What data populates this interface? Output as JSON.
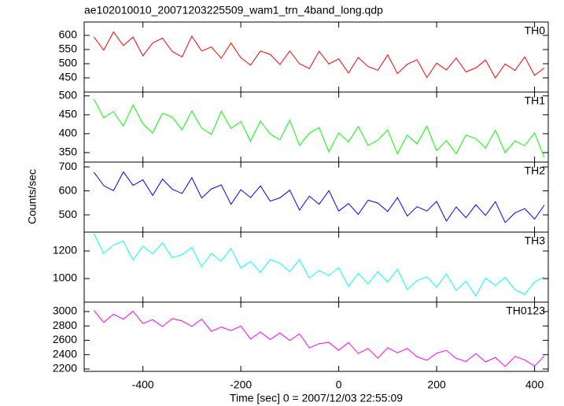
{
  "title": "ae102010010_20071203225509_wam1_trn_4band_long.qdp",
  "xlabel": "Time [sec] 0 = 2007/12/03 22:55:09",
  "ylabel": "Counts/sec",
  "chart_data": [
    {
      "type": "line",
      "label": "TH0",
      "color": "#ff0000",
      "x": [
        -500,
        -480,
        -460,
        -440,
        -420,
        -400,
        -380,
        -360,
        -340,
        -320,
        -300,
        -280,
        -260,
        -240,
        -220,
        -200,
        -180,
        -160,
        -140,
        -120,
        -100,
        -80,
        -60,
        -40,
        -20,
        0,
        20,
        40,
        60,
        80,
        100,
        120,
        140,
        160,
        180,
        200,
        220,
        240,
        260,
        280,
        300,
        320,
        340,
        360,
        380,
        400,
        420
      ],
      "values": [
        594,
        548,
        612,
        564,
        594,
        528,
        573,
        590,
        543,
        524,
        597,
        545,
        559,
        519,
        573,
        521,
        495,
        545,
        533,
        497,
        545,
        500,
        483,
        544,
        499,
        517,
        467,
        522,
        490,
        477,
        531,
        465,
        498,
        514,
        451,
        502,
        478,
        520,
        471,
        485,
        513,
        450,
        499,
        476,
        524,
        459,
        485
      ],
      "xlim": [
        -520,
        428
      ],
      "xticks": [
        -400,
        -200,
        0,
        200,
        400
      ],
      "ylim": [
        400,
        647
      ],
      "yticks": [
        450,
        500,
        550,
        600
      ]
    },
    {
      "type": "line",
      "label": "TH1",
      "color": "#00ff00",
      "x": [
        -500,
        -480,
        -460,
        -440,
        -420,
        -400,
        -380,
        -360,
        -340,
        -320,
        -300,
        -280,
        -260,
        -240,
        -220,
        -200,
        -180,
        -160,
        -140,
        -120,
        -100,
        -80,
        -60,
        -40,
        -20,
        0,
        20,
        40,
        60,
        80,
        100,
        120,
        140,
        160,
        180,
        200,
        220,
        240,
        260,
        280,
        300,
        320,
        340,
        360,
        380,
        400,
        420
      ],
      "values": [
        492,
        442,
        458,
        420,
        476,
        426,
        402,
        454,
        444,
        410,
        460,
        415,
        398,
        459,
        414,
        432,
        380,
        433,
        399,
        384,
        436,
        369,
        401,
        416,
        352,
        402,
        378,
        419,
        369,
        383,
        410,
        347,
        396,
        373,
        420,
        355,
        382,
        347,
        396,
        387,
        362,
        409,
        350,
        381,
        368,
        402,
        337
      ],
      "xlim": [
        -520,
        428
      ],
      "xticks": [
        -400,
        -200,
        0,
        200,
        400
      ],
      "ylim": [
        325,
        510
      ],
      "yticks": [
        350,
        400,
        450,
        500
      ]
    },
    {
      "type": "line",
      "label": "TH2",
      "color": "#0000ff",
      "x": [
        -500,
        -480,
        -460,
        -440,
        -420,
        -400,
        -380,
        -360,
        -340,
        -320,
        -300,
        -280,
        -260,
        -240,
        -220,
        -200,
        -180,
        -160,
        -140,
        -120,
        -100,
        -80,
        -60,
        -40,
        -20,
        0,
        20,
        40,
        60,
        80,
        100,
        120,
        140,
        160,
        180,
        200,
        220,
        240,
        260,
        280,
        300,
        320,
        340,
        360,
        380,
        400,
        420
      ],
      "values": [
        678,
        622,
        601,
        679,
        623,
        646,
        581,
        649,
        607,
        589,
        655,
        570,
        608,
        625,
        544,
        605,
        572,
        621,
        557,
        571,
        603,
        520,
        578,
        544,
        601,
        516,
        547,
        502,
        561,
        549,
        514,
        572,
        495,
        534,
        516,
        556,
        474,
        533,
        488,
        542,
        498,
        555,
        468,
        508,
        526,
        482,
        541
      ],
      "xlim": [
        -520,
        428
      ],
      "xticks": [
        -400,
        -200,
        0,
        200,
        400
      ],
      "ylim": [
        428,
        720
      ],
      "yticks": [
        500,
        600,
        700
      ]
    },
    {
      "type": "line",
      "label": "TH3",
      "color": "#00ffff",
      "x": [
        -500,
        -480,
        -460,
        -440,
        -420,
        -400,
        -380,
        -360,
        -340,
        -320,
        -300,
        -280,
        -260,
        -240,
        -220,
        -200,
        -180,
        -160,
        -140,
        -120,
        -100,
        -80,
        -60,
        -40,
        -20,
        0,
        20,
        40,
        60,
        80,
        100,
        120,
        140,
        160,
        180,
        200,
        220,
        240,
        260,
        280,
        300,
        320,
        340,
        360,
        380,
        400,
        420
      ],
      "values": [
        1325,
        1182,
        1244,
        1271,
        1135,
        1235,
        1179,
        1259,
        1151,
        1173,
        1225,
        1086,
        1182,
        1125,
        1219,
        1077,
        1124,
        1044,
        1138,
        1112,
        1050,
        1138,
        1003,
        1059,
        1022,
        1080,
        942,
        1038,
        962,
        1050,
        975,
        1068,
        920,
        985,
        1013,
        937,
        1035,
        914,
        980,
        874,
        1004,
        950,
        1009,
        920,
        885,
        975,
        1013
      ],
      "xlim": [
        -520,
        428
      ],
      "xticks": [
        -400,
        -200,
        0,
        200,
        400
      ],
      "ylim": [
        829,
        1337
      ],
      "yticks": [
        1000,
        1200
      ]
    },
    {
      "type": "line",
      "label": "TH0123",
      "color": "#ff00ff",
      "x": [
        -500,
        -480,
        -460,
        -440,
        -420,
        -400,
        -380,
        -360,
        -340,
        -320,
        -300,
        -280,
        -260,
        -240,
        -220,
        -200,
        -180,
        -160,
        -140,
        -120,
        -100,
        -80,
        -60,
        -40,
        -20,
        0,
        20,
        40,
        60,
        80,
        100,
        120,
        140,
        160,
        180,
        200,
        220,
        240,
        260,
        280,
        300,
        320,
        340,
        360,
        380,
        400,
        420
      ],
      "values": [
        3016,
        2848,
        2962,
        2893,
        3004,
        2833,
        2887,
        2791,
        2902,
        2869,
        2794,
        2893,
        2725,
        2785,
        2734,
        2797,
        2617,
        2716,
        2611,
        2701,
        2596,
        2689,
        2494,
        2554,
        2569,
        2461,
        2569,
        2416,
        2485,
        2350,
        2497,
        2425,
        2485,
        2371,
        2320,
        2419,
        2460,
        2348,
        2304,
        2414,
        2299,
        2360,
        2236,
        2373,
        2327,
        2241,
        2378
      ],
      "xlim": [
        -520,
        428
      ],
      "xticks": [
        -400,
        -200,
        0,
        200,
        400
      ],
      "ylim": [
        2167,
        3131
      ],
      "yticks": [
        2200,
        2400,
        2600,
        2800,
        3000
      ]
    }
  ]
}
